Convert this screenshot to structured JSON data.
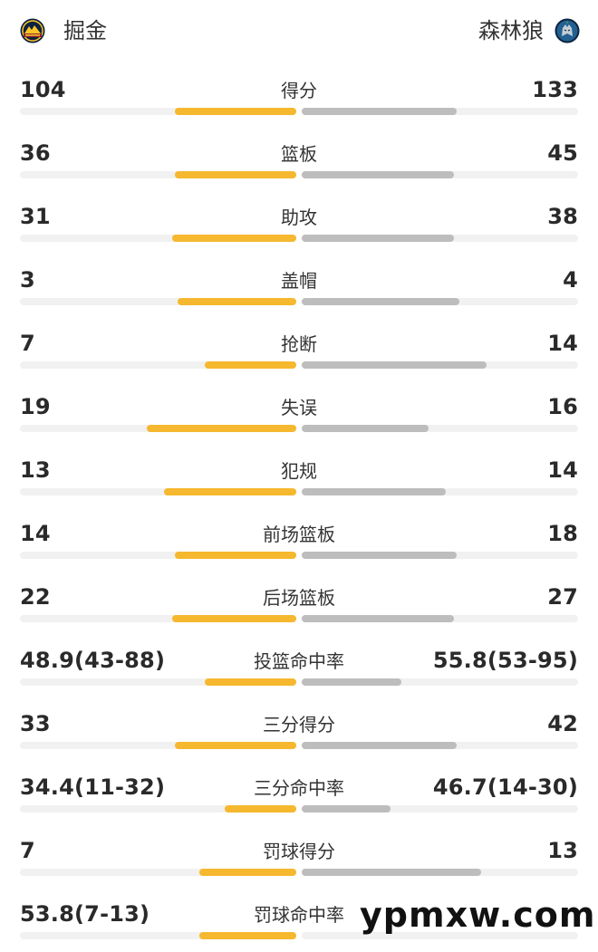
{
  "header": {
    "left_team": {
      "name": "掘金",
      "logo_icon": "nuggets-logo-icon",
      "color": "#f5b82e"
    },
    "right_team": {
      "name": "森林狼",
      "logo_icon": "timberwolves-logo-icon",
      "color": "#bdbdbd"
    }
  },
  "stats": [
    {
      "label": "得分",
      "left": "104",
      "right": "133",
      "left_bar": 0.44,
      "right_bar": 0.56
    },
    {
      "label": "篮板",
      "left": "36",
      "right": "45",
      "left_bar": 0.44,
      "right_bar": 0.55
    },
    {
      "label": "助攻",
      "left": "31",
      "right": "38",
      "left_bar": 0.45,
      "right_bar": 0.55
    },
    {
      "label": "盖帽",
      "left": "3",
      "right": "4",
      "left_bar": 0.43,
      "right_bar": 0.57
    },
    {
      "label": "抢断",
      "left": "7",
      "right": "14",
      "left_bar": 0.33,
      "right_bar": 0.67
    },
    {
      "label": "失误",
      "left": "19",
      "right": "16",
      "left_bar": 0.54,
      "right_bar": 0.46
    },
    {
      "label": "犯规",
      "left": "13",
      "right": "14",
      "left_bar": 0.48,
      "right_bar": 0.52
    },
    {
      "label": "前场篮板",
      "left": "14",
      "right": "18",
      "left_bar": 0.44,
      "right_bar": 0.56
    },
    {
      "label": "后场篮板",
      "left": "22",
      "right": "27",
      "left_bar": 0.45,
      "right_bar": 0.55
    },
    {
      "label": "投篮命中率",
      "left": "48.9(43-88)",
      "right": "55.8(53-95)",
      "left_bar": 0.33,
      "right_bar": 0.36
    },
    {
      "label": "三分得分",
      "left": "33",
      "right": "42",
      "left_bar": 0.44,
      "right_bar": 0.56
    },
    {
      "label": "三分命中率",
      "left": "34.4(11-32)",
      "right": "46.7(14-30)",
      "left_bar": 0.26,
      "right_bar": 0.32
    },
    {
      "label": "罚球得分",
      "left": "7",
      "right": "13",
      "left_bar": 0.35,
      "right_bar": 0.65
    },
    {
      "label": "罚球命中率",
      "left": "53.8(7-13)",
      "right": "",
      "left_bar": 0.35,
      "right_bar": 0.0
    }
  ],
  "watermark": {
    "text": "ypmxw.com"
  }
}
